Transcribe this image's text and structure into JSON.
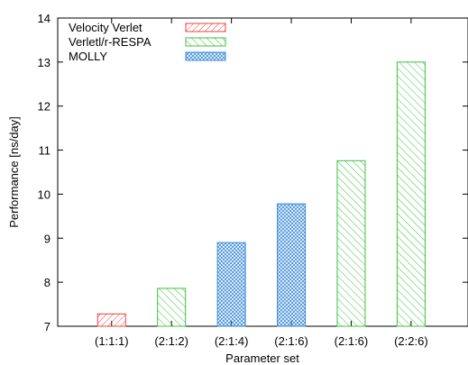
{
  "chart_data": {
    "type": "bar",
    "xlabel": "Parameter set",
    "ylabel": "Performance [ns/day]",
    "ylim": [
      7,
      14
    ],
    "yticks": [
      7,
      8,
      9,
      10,
      11,
      12,
      13,
      14
    ],
    "categories": [
      "(1:1:1)",
      "(2:1:2)",
      "(2:1:4)",
      "(2:1:6)",
      "(2:1:6)",
      "(2:2:6)"
    ],
    "bars": [
      {
        "category": "(1:1:1)",
        "series": "Velocity Verlet",
        "value": 7.28
      },
      {
        "category": "(2:1:2)",
        "series": "Verletl/r-RESPA",
        "value": 7.86
      },
      {
        "category": "(2:1:4)",
        "series": "MOLLY",
        "value": 8.9
      },
      {
        "category": "(2:1:6)",
        "series": "MOLLY",
        "value": 9.78
      },
      {
        "category": "(2:1:6)",
        "series": "Verletl/r-RESPA",
        "value": 10.76
      },
      {
        "category": "(2:2:6)",
        "series": "Verletl/r-RESPA",
        "value": 13.0
      }
    ],
    "series": [
      {
        "name": "Velocity Verlet",
        "color": "#f04040",
        "pattern": "diagonal-hatch-dense"
      },
      {
        "name": "Verletl/r-RESPA",
        "color": "#40c040",
        "pattern": "diagonal-hatch"
      },
      {
        "name": "MOLLY",
        "color": "#3a8ad8",
        "pattern": "crosshatch"
      }
    ],
    "legend_position": "top-left",
    "grid": false
  }
}
